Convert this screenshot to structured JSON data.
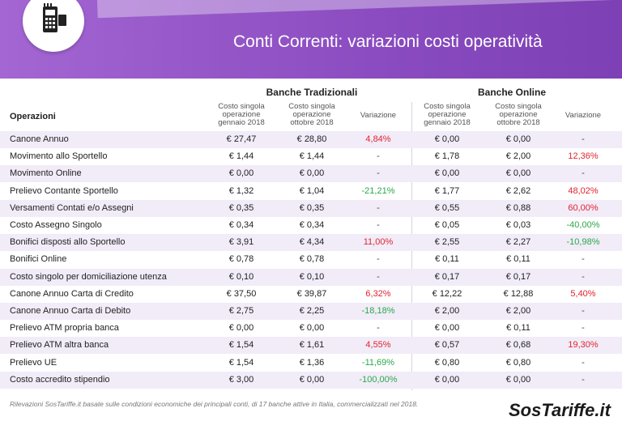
{
  "header": {
    "title": "Conti Correnti: variazioni costi operatività"
  },
  "table": {
    "groups": [
      "Banche Tradizionali",
      "Banche Online"
    ],
    "first_column": "Operazioni",
    "subheaders": [
      "Costo singola\noperazione\ngennaio 2018",
      "Costo singola\noperazione\nottobre 2018",
      "Variazione",
      "Costo singola\noperazione\ngennaio 2018",
      "Costo singola\noperazione\nottobre 2018",
      "Variazione"
    ],
    "rows": [
      [
        "Canone Annuo",
        "€ 27,47",
        "€ 28,80",
        "4,84%",
        "€ 0,00",
        "€ 0,00",
        "-"
      ],
      [
        "Movimento allo Sportello",
        "€ 1,44",
        "€ 1,44",
        "-",
        "€ 1,78",
        "€ 2,00",
        "12,36%"
      ],
      [
        "Movimento Online",
        "€ 0,00",
        "€ 0,00",
        "-",
        "€ 0,00",
        "€ 0,00",
        "-"
      ],
      [
        "Prelievo Contante Sportello",
        "€ 1,32",
        "€ 1,04",
        "-21,21%",
        "€ 1,77",
        "€ 2,62",
        "48,02%"
      ],
      [
        "Versamenti Contati e/o Assegni",
        "€ 0,35",
        "€ 0,35",
        "-",
        "€ 0,55",
        "€ 0,88",
        "60,00%"
      ],
      [
        "Costo Assegno Singolo",
        "€ 0,34",
        "€ 0,34",
        "-",
        "€ 0,05",
        "€ 0,03",
        "-40,00%"
      ],
      [
        "Bonifici disposti allo Sportello",
        "€ 3,91",
        "€ 4,34",
        "11,00%",
        "€ 2,55",
        "€ 2,27",
        "-10,98%"
      ],
      [
        "Bonifici Online",
        "€ 0,78",
        "€ 0,78",
        "-",
        "€ 0,11",
        "€ 0,11",
        "-"
      ],
      [
        "Costo singolo per domiciliazione utenza",
        "€ 0,10",
        "€ 0,10",
        "-",
        "€ 0,17",
        "€ 0,17",
        "-"
      ],
      [
        "Canone Annuo Carta di Credito",
        "€ 37,50",
        "€ 39,87",
        "6,32%",
        "€ 12,22",
        "€ 12,88",
        "5,40%"
      ],
      [
        "Canone Annuo Carta di Debito",
        "€ 2,75",
        "€ 2,25",
        "-18,18%",
        "€ 2,00",
        "€ 2,00",
        "-"
      ],
      [
        "Prelievo ATM propria banca",
        "€ 0,00",
        "€ 0,00",
        "-",
        "€ 0,00",
        "€ 0,11",
        "-"
      ],
      [
        "Prelievo ATM altra banca",
        "€ 1,54",
        "€ 1,61",
        "4,55%",
        "€ 0,57",
        "€ 0,68",
        "19,30%"
      ],
      [
        "Prelievo UE",
        "€ 1,54",
        "€ 1,36",
        "-11,69%",
        "€ 0,80",
        "€ 0,80",
        "-"
      ],
      [
        "Costo accredito stipendio",
        "€ 3,00",
        "€ 0,00",
        "-100,00%",
        "€ 0,00",
        "€ 0,00",
        "-"
      ]
    ]
  },
  "footer": {
    "note": "Rilevazioni SosTariffe.it basate sulle condizioni economiche dei principali conti, di 17 banche attive in Italia, commercializzati nel 2018.",
    "logo": "SosTariffe.it"
  }
}
